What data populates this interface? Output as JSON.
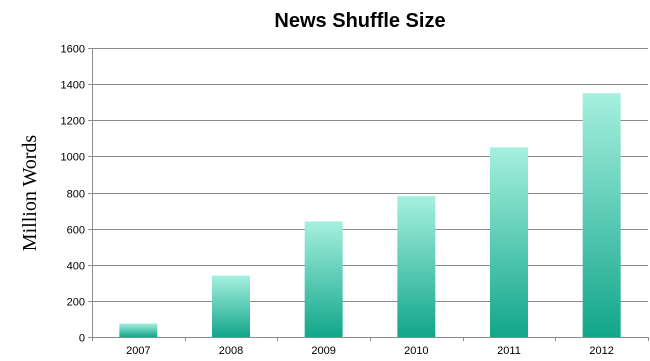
{
  "chart_data": {
    "type": "bar",
    "title": "News Shuffle Size",
    "xlabel": "",
    "ylabel": "Million Words",
    "categories": [
      "2007",
      "2008",
      "2009",
      "2010",
      "2011",
      "2012"
    ],
    "values": [
      75,
      340,
      640,
      780,
      1050,
      1350
    ],
    "ylim": [
      0,
      1600
    ],
    "yticks": [
      "0",
      "200",
      "400",
      "600",
      "800",
      "1000",
      "1200",
      "1400",
      "1600"
    ],
    "grid": true,
    "legend": "none",
    "colors": {
      "bar_top": "#a6f0df",
      "bar_bottom": "#12a68a",
      "grid": "#8c8c8c"
    }
  }
}
